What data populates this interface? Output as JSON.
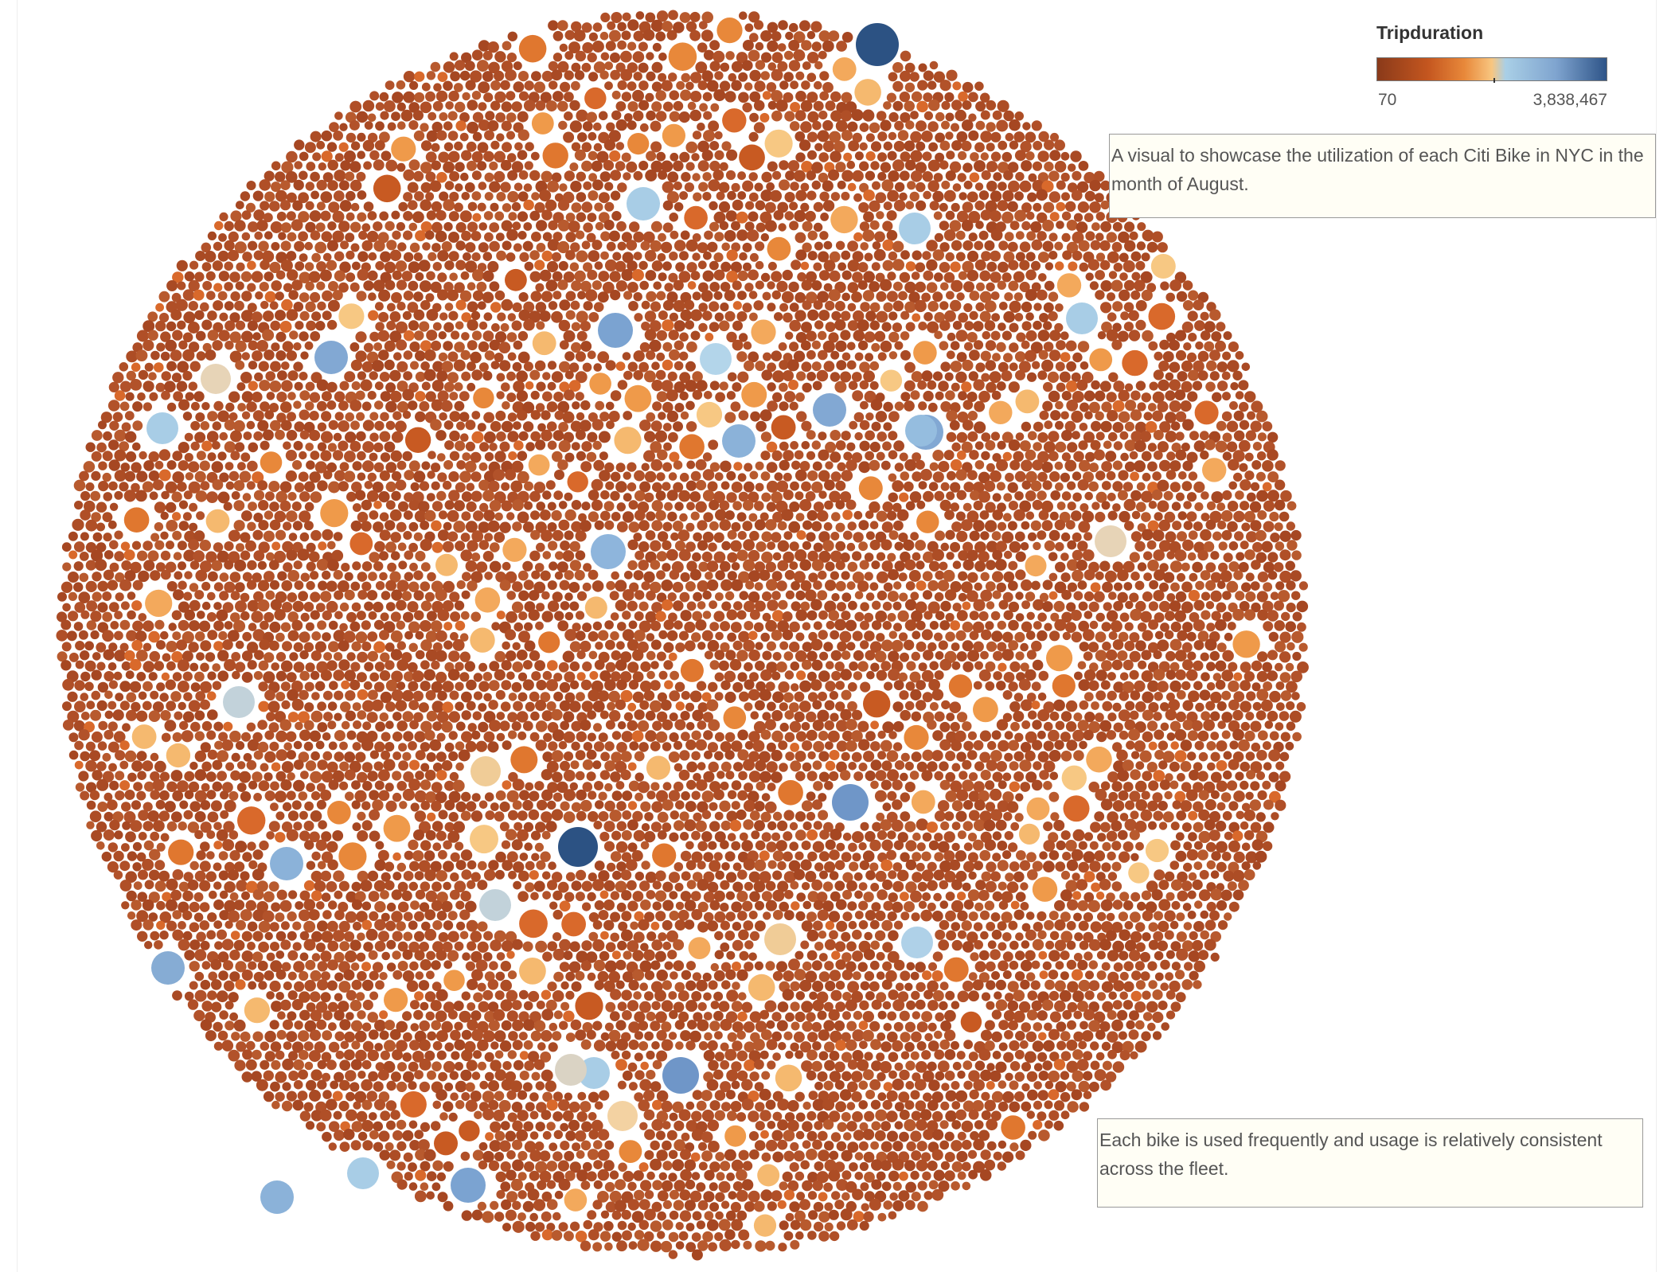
{
  "chart_data": {
    "type": "packed-bubble",
    "title": "",
    "legend": {
      "title": "Tripduration",
      "min_label": "70",
      "max_label": "3,838,467",
      "min": 70,
      "max": 3838467,
      "position": "top-right",
      "colors": [
        "#8a3a1a",
        "#c4561f",
        "#e8883a",
        "#f8c680",
        "#a9cfe6",
        "#7fa4cf",
        "#2e5488"
      ]
    },
    "bubble_count_approx": 5000,
    "base_color": "#b2522a",
    "highlighted_bubbles": [
      {
        "color": "#2c5283",
        "value": 3838467
      },
      {
        "color": "#2c5283",
        "value": 3800000
      },
      {
        "color": "#6f96c8",
        "value": 3000000
      },
      {
        "color": "#6f96c8",
        "value": 3000000
      },
      {
        "color": "#7ba3d1",
        "value": 2900000
      },
      {
        "color": "#7ba3d1",
        "value": 2900000
      },
      {
        "color": "#82a8d3",
        "value": 2800000
      },
      {
        "color": "#82a8d3",
        "value": 2800000
      },
      {
        "color": "#82a8d3",
        "value": 2800000
      },
      {
        "color": "#86acd4",
        "value": 2750000
      },
      {
        "color": "#8bb2d9",
        "value": 2700000
      },
      {
        "color": "#8bb2d9",
        "value": 2700000
      },
      {
        "color": "#8bb2d9",
        "value": 2700000
      },
      {
        "color": "#8eb5dc",
        "value": 2650000
      },
      {
        "color": "#95bddf",
        "value": 2600000
      },
      {
        "color": "#a8cde6",
        "value": 2400000
      },
      {
        "color": "#a8cde6",
        "value": 2400000
      },
      {
        "color": "#a8cde6",
        "value": 2400000
      },
      {
        "color": "#a8cde6",
        "value": 2400000
      },
      {
        "color": "#a8cde6",
        "value": 2400000
      },
      {
        "color": "#a8cde6",
        "value": 2400000
      },
      {
        "color": "#afd1e8",
        "value": 2350000
      },
      {
        "color": "#b3d5ea",
        "value": 2300000
      },
      {
        "color": "#c2d2da",
        "value": 2150000
      },
      {
        "color": "#c2d2da",
        "value": 2150000
      },
      {
        "color": "#dad3c4",
        "value": 2000000
      },
      {
        "color": "#e7d4b7",
        "value": 1950000
      },
      {
        "color": "#e7d4b7",
        "value": 1950000
      },
      {
        "color": "#f0cc97",
        "value": 1850000
      },
      {
        "color": "#f0cc97",
        "value": 1850000
      },
      {
        "color": "#f3d2a2",
        "value": 1900000
      }
    ]
  },
  "annotations": [
    {
      "text": "A visual to showcase the utilization of each Citi Bike in NYC in the month of August."
    },
    {
      "text": "Each bike is used frequently and usage is relatively consistent across the fleet."
    }
  ]
}
